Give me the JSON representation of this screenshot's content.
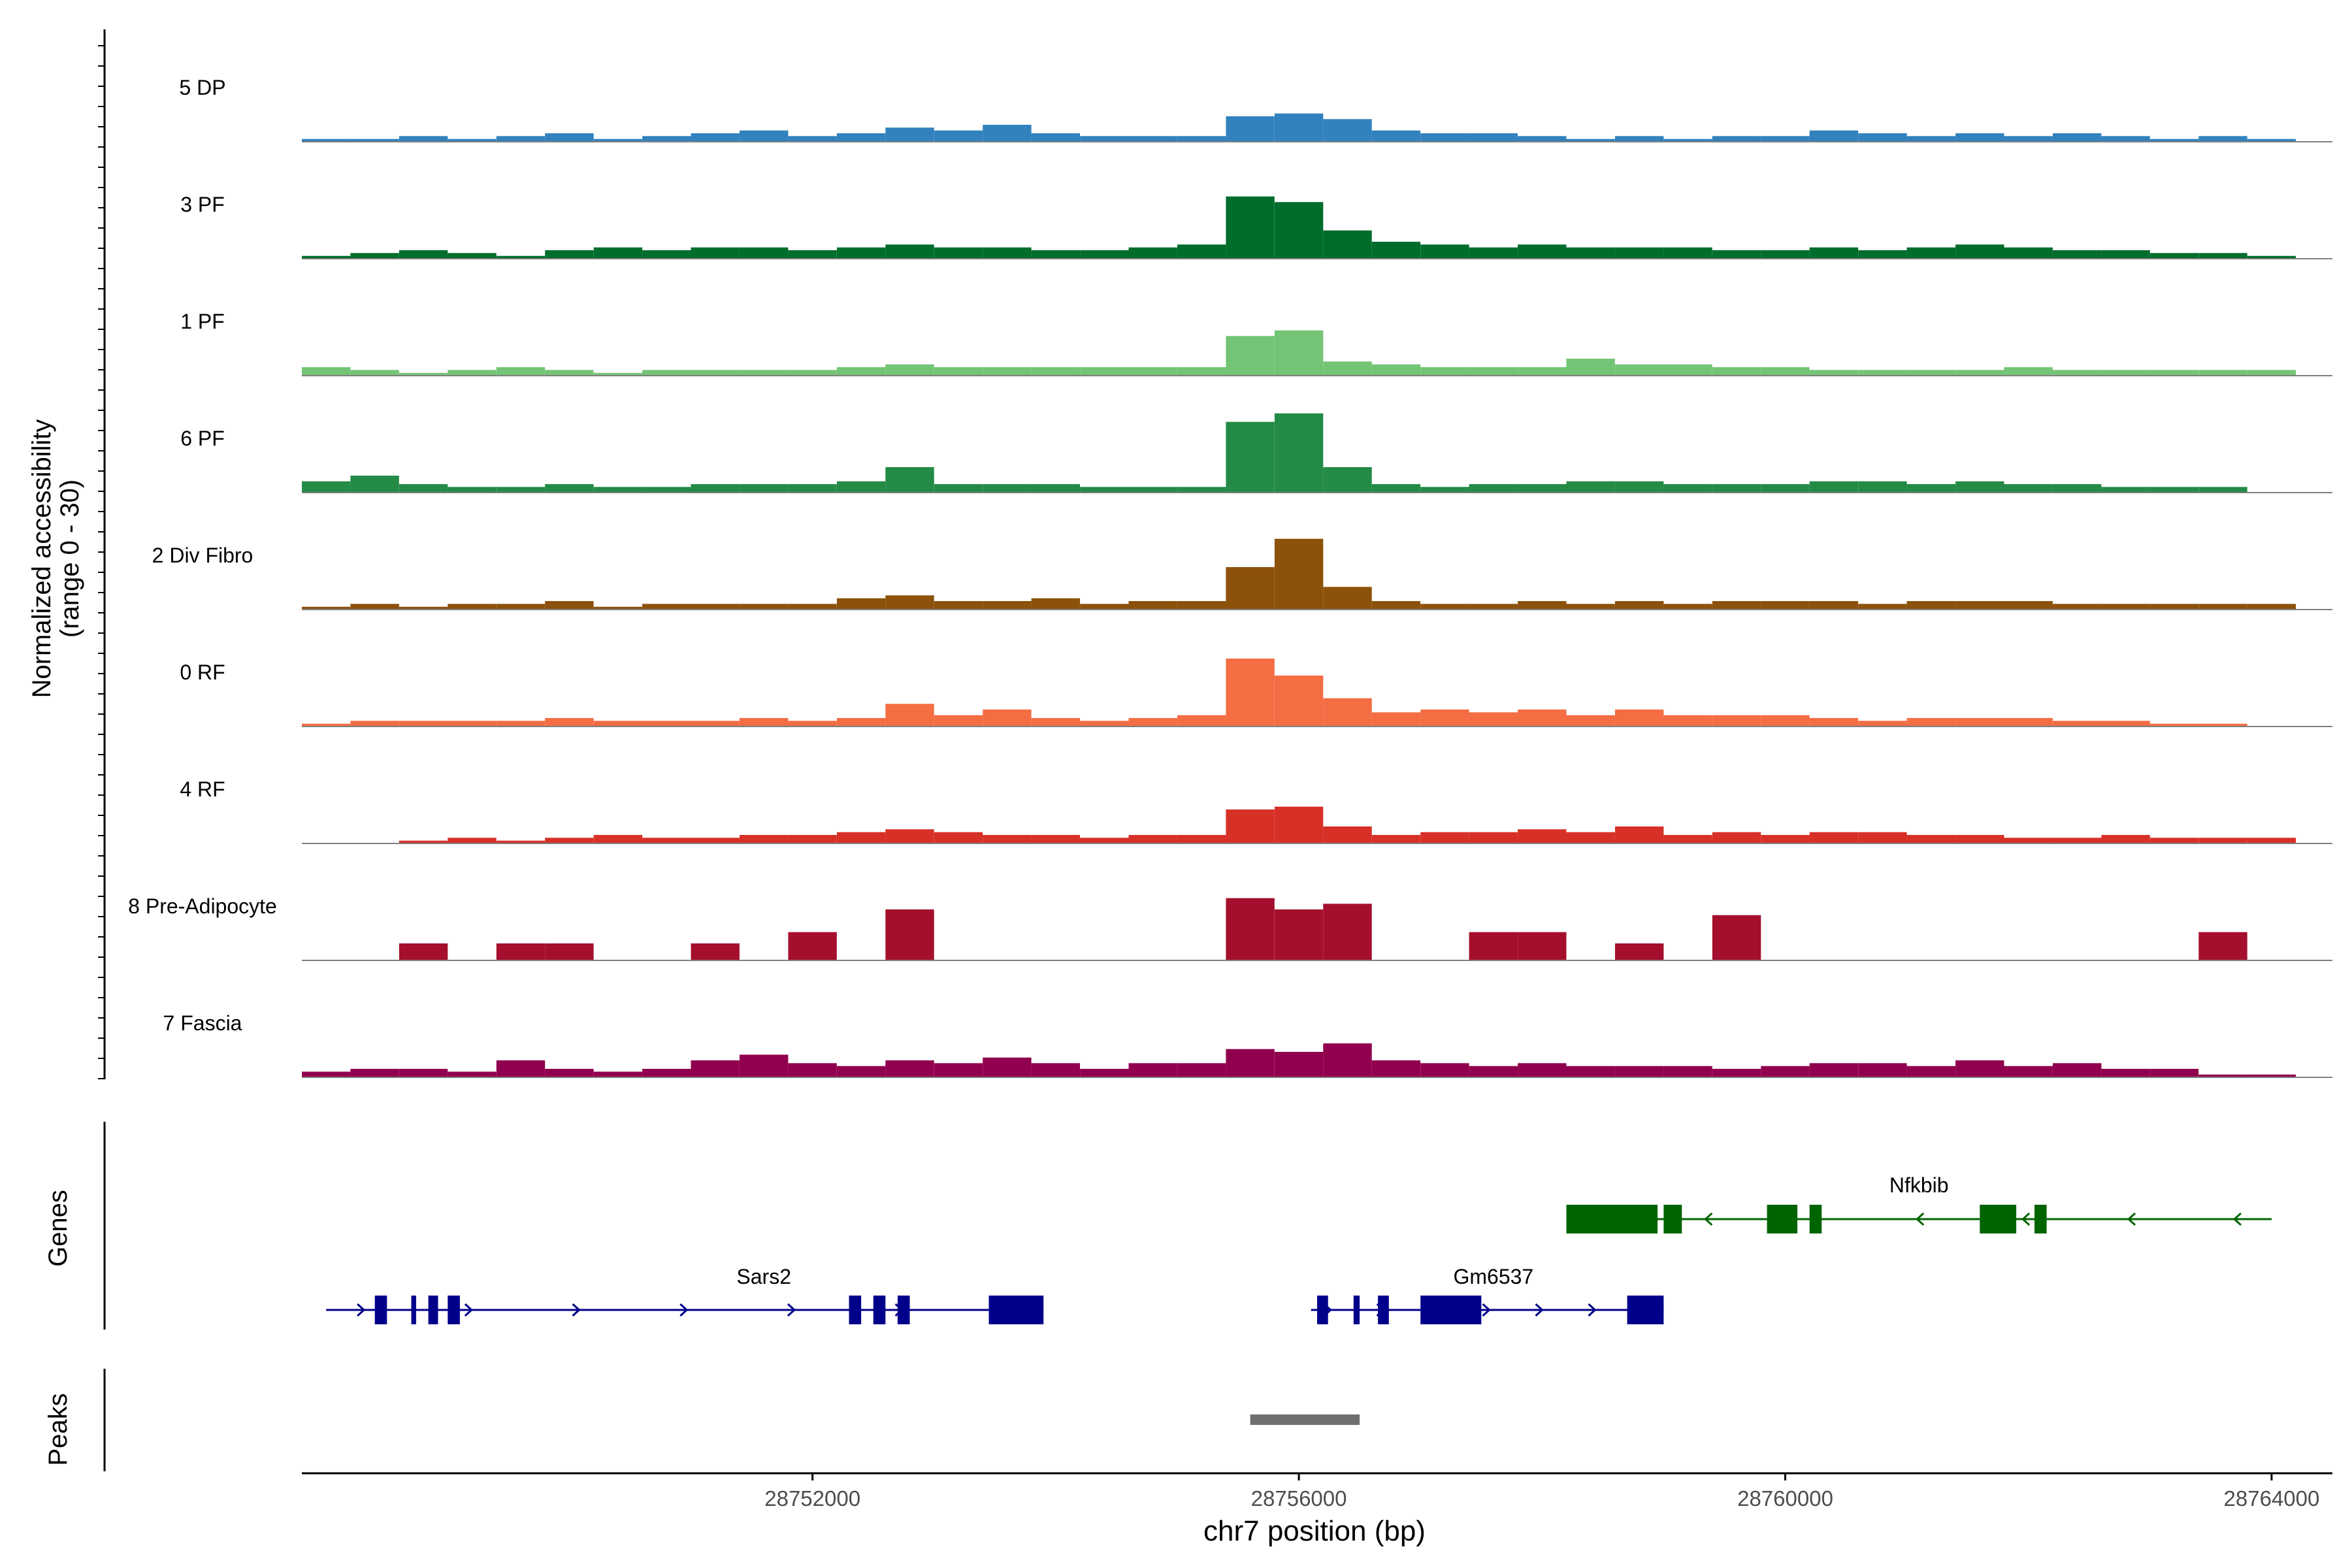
{
  "chart_data": {
    "type": "area",
    "title": "",
    "xlabel": "chr7 position (bp)",
    "ylabel_line1": "Normalized accessibility",
    "ylabel_line2": "(range 0 - 30)",
    "xlim": [
      28747800,
      28764500
    ],
    "ylim": [
      0,
      30
    ],
    "x_ticks": [
      28752000,
      28756000,
      28760000,
      28764000
    ],
    "x_tick_labels": [
      "28752000",
      "28756000",
      "28760000",
      "28764000"
    ],
    "x_bins": [
      28748000,
      28748400,
      28748800,
      28749200,
      28749600,
      28750000,
      28750400,
      28750800,
      28751200,
      28751600,
      28752000,
      28752400,
      28752800,
      28753200,
      28753600,
      28754000,
      28754400,
      28754800,
      28755200,
      28755600,
      28756000,
      28756400,
      28756800,
      28757200,
      28757600,
      28758000,
      28758400,
      28758800,
      28759200,
      28759600,
      28760000,
      28760400,
      28760800,
      28761200,
      28761600,
      28762000,
      28762400,
      28762800,
      28763200,
      28763600,
      28764000
    ],
    "series": [
      {
        "name": "5 DP",
        "color": "#3182bd",
        "values": [
          1,
          1,
          2,
          1,
          2,
          3,
          1,
          2,
          3,
          4,
          2,
          3,
          5,
          4,
          6,
          3,
          2,
          2,
          2,
          9,
          10,
          8,
          4,
          3,
          3,
          2,
          1,
          2,
          1,
          2,
          2,
          4,
          3,
          2,
          3,
          2,
          3,
          2,
          1,
          2,
          1
        ]
      },
      {
        "name": "3 PF",
        "color": "#006d2c",
        "values": [
          1,
          2,
          3,
          2,
          1,
          3,
          4,
          3,
          4,
          4,
          3,
          4,
          5,
          4,
          4,
          3,
          3,
          4,
          5,
          22,
          20,
          10,
          6,
          5,
          4,
          5,
          4,
          4,
          4,
          3,
          3,
          4,
          3,
          4,
          5,
          4,
          3,
          3,
          2,
          2,
          1
        ]
      },
      {
        "name": "1 PF",
        "color": "#74c476",
        "values": [
          3,
          2,
          1,
          2,
          3,
          2,
          1,
          2,
          2,
          2,
          2,
          3,
          4,
          3,
          3,
          3,
          3,
          3,
          3,
          14,
          16,
          5,
          4,
          3,
          3,
          3,
          6,
          4,
          4,
          3,
          3,
          2,
          2,
          2,
          2,
          3,
          2,
          2,
          2,
          2,
          2
        ]
      },
      {
        "name": "6 PF",
        "color": "#238b45",
        "values": [
          4,
          6,
          3,
          2,
          2,
          3,
          2,
          2,
          3,
          3,
          3,
          4,
          9,
          3,
          3,
          3,
          2,
          2,
          2,
          25,
          28,
          9,
          3,
          2,
          3,
          3,
          4,
          4,
          3,
          3,
          3,
          4,
          4,
          3,
          4,
          3,
          3,
          2,
          2,
          2,
          0
        ]
      },
      {
        "name": "2 Div Fibro",
        "color": "#8c510a",
        "values": [
          1,
          2,
          1,
          2,
          2,
          3,
          1,
          2,
          2,
          2,
          2,
          4,
          5,
          3,
          3,
          4,
          2,
          3,
          3,
          15,
          25,
          8,
          3,
          2,
          2,
          3,
          2,
          3,
          2,
          3,
          3,
          3,
          2,
          3,
          3,
          3,
          2,
          2,
          2,
          2,
          2
        ]
      },
      {
        "name": "0 RF",
        "color": "#f46d43",
        "values": [
          1,
          2,
          2,
          2,
          2,
          3,
          2,
          2,
          2,
          3,
          2,
          3,
          8,
          4,
          6,
          3,
          2,
          3,
          4,
          24,
          18,
          10,
          5,
          6,
          5,
          6,
          4,
          6,
          4,
          4,
          4,
          3,
          2,
          3,
          3,
          3,
          2,
          2,
          1,
          1,
          0
        ]
      },
      {
        "name": "4 RF",
        "color": "#d73027",
        "values": [
          0,
          0,
          1,
          2,
          1,
          2,
          3,
          2,
          2,
          3,
          3,
          4,
          5,
          4,
          3,
          3,
          2,
          3,
          3,
          12,
          13,
          6,
          3,
          4,
          4,
          5,
          4,
          6,
          3,
          4,
          3,
          4,
          4,
          3,
          3,
          2,
          2,
          3,
          2,
          2,
          2
        ]
      },
      {
        "name": "8 Pre-Adipocyte",
        "color": "#a50f2d",
        "values": [
          0,
          0,
          6,
          0,
          6,
          6,
          0,
          0,
          6,
          0,
          10,
          0,
          18,
          0,
          0,
          0,
          0,
          0,
          0,
          22,
          18,
          20,
          0,
          0,
          10,
          10,
          0,
          6,
          0,
          16,
          0,
          0,
          0,
          0,
          0,
          0,
          0,
          0,
          0,
          10,
          0
        ]
      },
      {
        "name": "7 Fascia",
        "color": "#91004e",
        "values": [
          2,
          3,
          3,
          2,
          6,
          3,
          2,
          3,
          6,
          8,
          5,
          4,
          6,
          5,
          7,
          5,
          3,
          5,
          5,
          10,
          9,
          12,
          6,
          5,
          4,
          5,
          4,
          4,
          4,
          3,
          4,
          5,
          5,
          4,
          6,
          4,
          5,
          3,
          3,
          1,
          1
        ]
      }
    ],
    "genes_track_label": "Genes",
    "peaks_track_label": "Peaks",
    "genes": [
      {
        "name": "Sars2",
        "color": "#00008b",
        "strand": "+",
        "start": 28748000,
        "end": 28753900,
        "exons": [
          [
            28748400,
            28748500
          ],
          [
            28748700,
            28748740
          ],
          [
            28748840,
            28748920
          ],
          [
            28749000,
            28749100
          ],
          [
            28752300,
            28752400
          ],
          [
            28752500,
            28752600
          ],
          [
            28752700,
            28752800
          ],
          [
            28753450,
            28753900
          ]
        ]
      },
      {
        "name": "Gm6537",
        "color": "#00008b",
        "strand": "+",
        "start": 28756100,
        "end": 28759000,
        "exons": [
          [
            28756150,
            28756240
          ],
          [
            28756450,
            28756500
          ],
          [
            28756650,
            28756740
          ],
          [
            28757000,
            28757500
          ],
          [
            28758700,
            28759000
          ]
        ]
      },
      {
        "name": "Nfkbib",
        "color": "#006400",
        "strand": "-",
        "start": 28758200,
        "end": 28764000,
        "exons": [
          [
            28758200,
            28758950
          ],
          [
            28759000,
            28759150
          ],
          [
            28759850,
            28760100
          ],
          [
            28760200,
            28760300
          ],
          [
            28761600,
            28761900
          ],
          [
            28762050,
            28762150
          ]
        ]
      }
    ],
    "peaks": [
      {
        "start": 28755600,
        "end": 28756500
      }
    ]
  }
}
